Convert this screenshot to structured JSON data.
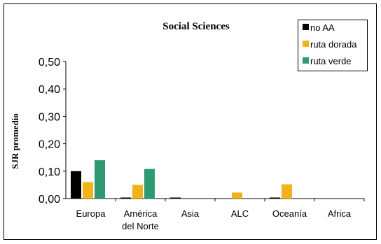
{
  "chart_data": {
    "type": "bar",
    "title": "Social Sciences",
    "ylabel": "SJR promedio",
    "xlabel": "",
    "ylim": [
      0,
      0.5
    ],
    "yticks": [
      "0,00",
      "0,10",
      "0,20",
      "0,30",
      "0,40",
      "0,50"
    ],
    "categories": [
      [
        "Europa"
      ],
      [
        "América",
        "del Norte"
      ],
      [
        "Asia"
      ],
      [
        "ALC"
      ],
      [
        "Oceanía"
      ],
      [
        "Africa"
      ]
    ],
    "series": [
      {
        "name": "no AA",
        "color": "#000000",
        "values": [
          0.1,
          0.003,
          0.003,
          0,
          0.003,
          0
        ]
      },
      {
        "name": "ruta dorada",
        "color": "#F2B31A",
        "values": [
          0.06,
          0.05,
          0,
          0.022,
          0.052,
          0
        ]
      },
      {
        "name": "ruta verde",
        "color": "#2E9A72",
        "values": [
          0.14,
          0.108,
          0,
          0,
          0,
          0
        ]
      }
    ],
    "legend_position": "top-right",
    "grid": false
  }
}
